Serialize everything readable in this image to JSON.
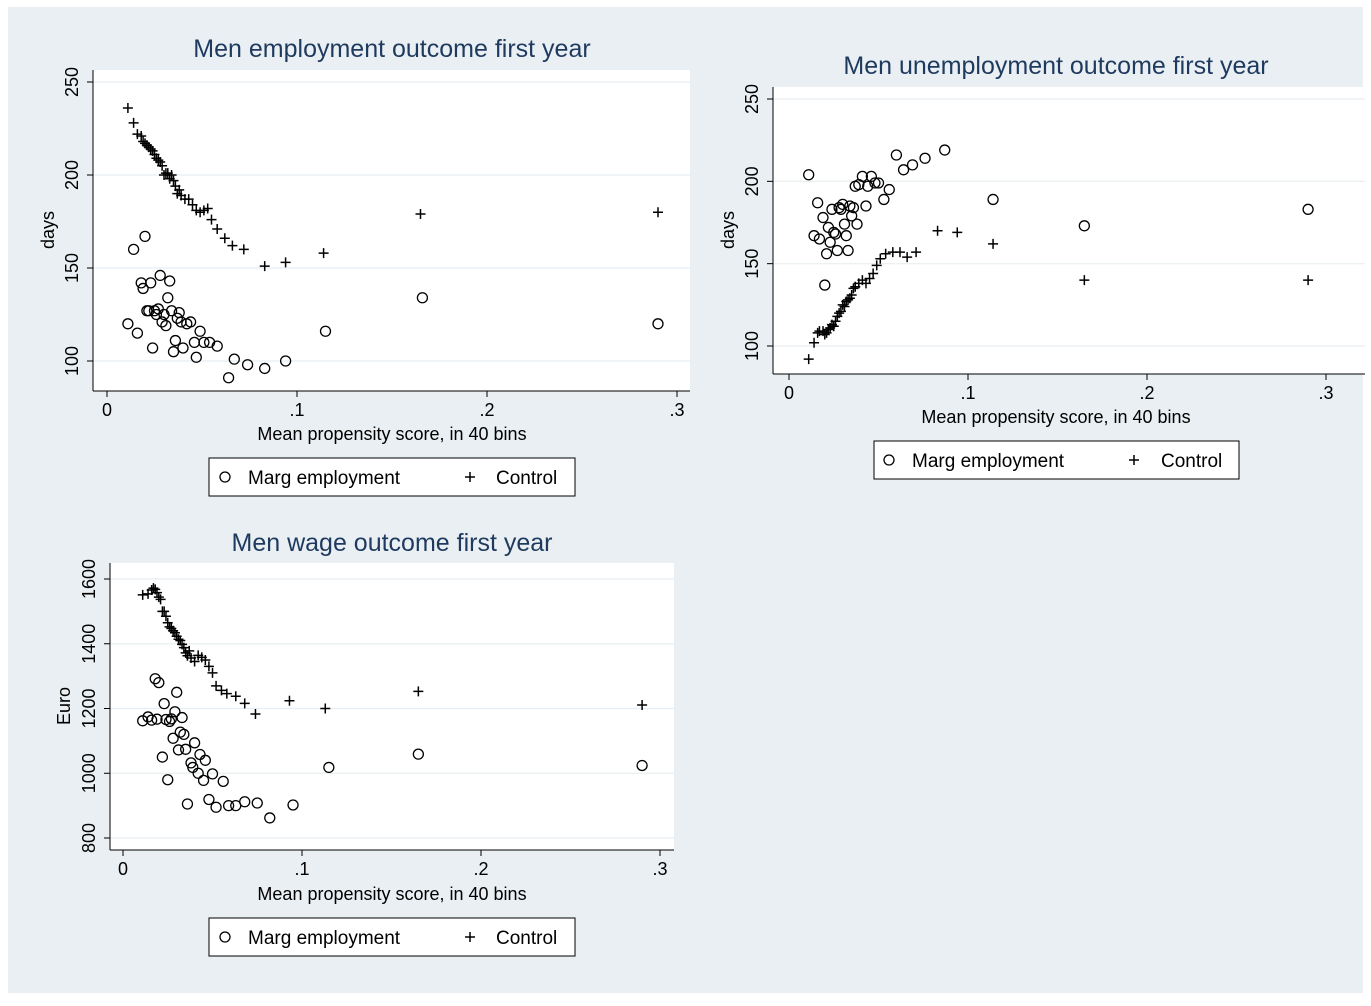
{
  "chart_data": [
    {
      "type": "scatter",
      "title": "Men employment outcome first year",
      "xlabel": "Mean propensity score, in 40 bins",
      "ylabel": "days",
      "xlim": [
        0,
        0.3
      ],
      "ylim": [
        90,
        250
      ],
      "xticks": [
        0,
        0.1,
        0.2,
        0.3
      ],
      "xtick_labels": [
        "0",
        ".1",
        ".2",
        ".3"
      ],
      "yticks": [
        100,
        150,
        200,
        250
      ],
      "ytick_labels": [
        "100",
        "150",
        "200",
        "250"
      ],
      "grid": true,
      "legend_position": "bottom",
      "series": [
        {
          "name": "Marg employment",
          "marker": "circle",
          "points": [
            [
              0.011,
              120
            ],
            [
              0.014,
              160
            ],
            [
              0.016,
              115
            ],
            [
              0.018,
              142
            ],
            [
              0.019,
              139
            ],
            [
              0.02,
              167
            ],
            [
              0.021,
              127
            ],
            [
              0.022,
              127
            ],
            [
              0.023,
              142
            ],
            [
              0.024,
              107
            ],
            [
              0.025,
              127
            ],
            [
              0.026,
              125
            ],
            [
              0.027,
              128
            ],
            [
              0.028,
              146
            ],
            [
              0.029,
              121
            ],
            [
              0.03,
              125
            ],
            [
              0.031,
              119
            ],
            [
              0.032,
              134
            ],
            [
              0.033,
              143
            ],
            [
              0.034,
              127
            ],
            [
              0.035,
              105
            ],
            [
              0.036,
              111
            ],
            [
              0.037,
              123
            ],
            [
              0.038,
              126
            ],
            [
              0.039,
              121
            ],
            [
              0.04,
              107
            ],
            [
              0.042,
              120
            ],
            [
              0.044,
              121
            ],
            [
              0.046,
              110
            ],
            [
              0.047,
              102
            ],
            [
              0.049,
              116
            ],
            [
              0.051,
              110
            ],
            [
              0.054,
              110
            ],
            [
              0.058,
              108
            ],
            [
              0.064,
              91
            ],
            [
              0.067,
              101
            ],
            [
              0.074,
              98
            ],
            [
              0.083,
              96
            ],
            [
              0.094,
              100
            ],
            [
              0.115,
              116
            ],
            [
              0.166,
              134
            ],
            [
              0.29,
              120
            ]
          ]
        },
        {
          "name": "Control",
          "marker": "plus",
          "points": [
            [
              0.011,
              236
            ],
            [
              0.014,
              228
            ],
            [
              0.016,
              222
            ],
            [
              0.018,
              221
            ],
            [
              0.019,
              218
            ],
            [
              0.02,
              217
            ],
            [
              0.021,
              216
            ],
            [
              0.022,
              215
            ],
            [
              0.023,
              214
            ],
            [
              0.024,
              213
            ],
            [
              0.025,
              211
            ],
            [
              0.026,
              209
            ],
            [
              0.027,
              208
            ],
            [
              0.028,
              207
            ],
            [
              0.029,
              205
            ],
            [
              0.03,
              200
            ],
            [
              0.031,
              201
            ],
            [
              0.032,
              201
            ],
            [
              0.033,
              198
            ],
            [
              0.034,
              200
            ],
            [
              0.035,
              197
            ],
            [
              0.036,
              194
            ],
            [
              0.037,
              190
            ],
            [
              0.038,
              192
            ],
            [
              0.039,
              189
            ],
            [
              0.041,
              187
            ],
            [
              0.043,
              187
            ],
            [
              0.045,
              184
            ],
            [
              0.047,
              181
            ],
            [
              0.049,
              180
            ],
            [
              0.051,
              181
            ],
            [
              0.053,
              182
            ],
            [
              0.055,
              176
            ],
            [
              0.058,
              171
            ],
            [
              0.062,
              166
            ],
            [
              0.066,
              162
            ],
            [
              0.072,
              160
            ],
            [
              0.083,
              151
            ],
            [
              0.094,
              153
            ],
            [
              0.114,
              158
            ],
            [
              0.165,
              179
            ],
            [
              0.29,
              180
            ]
          ]
        }
      ]
    },
    {
      "type": "scatter",
      "title": "Men unemployment outcome first year",
      "xlabel": "Mean propensity score, in 40 bins",
      "ylabel": "days",
      "xlim": [
        0,
        0.3
      ],
      "ylim": [
        90,
        255
      ],
      "xticks": [
        0,
        0.1,
        0.2,
        0.3
      ],
      "xtick_labels": [
        "0",
        ".1",
        ".2",
        ".3"
      ],
      "yticks": [
        100,
        150,
        200,
        250
      ],
      "ytick_labels": [
        "100",
        "150",
        "200",
        "250"
      ],
      "grid": true,
      "legend_position": "bottom",
      "series": [
        {
          "name": "Marg employment",
          "marker": "circle",
          "points": [
            [
              0.011,
              204
            ],
            [
              0.014,
              167
            ],
            [
              0.016,
              187
            ],
            [
              0.017,
              165
            ],
            [
              0.019,
              178
            ],
            [
              0.02,
              137
            ],
            [
              0.021,
              156
            ],
            [
              0.022,
              172
            ],
            [
              0.023,
              163
            ],
            [
              0.024,
              183
            ],
            [
              0.025,
              169
            ],
            [
              0.026,
              168
            ],
            [
              0.027,
              158
            ],
            [
              0.028,
              184
            ],
            [
              0.029,
              183
            ],
            [
              0.03,
              186
            ],
            [
              0.031,
              174
            ],
            [
              0.032,
              167
            ],
            [
              0.033,
              158
            ],
            [
              0.034,
              185
            ],
            [
              0.035,
              179
            ],
            [
              0.036,
              184
            ],
            [
              0.037,
              197
            ],
            [
              0.038,
              174
            ],
            [
              0.039,
              198
            ],
            [
              0.041,
              203
            ],
            [
              0.043,
              185
            ],
            [
              0.044,
              197
            ],
            [
              0.046,
              203
            ],
            [
              0.048,
              199
            ],
            [
              0.05,
              199
            ],
            [
              0.053,
              189
            ],
            [
              0.056,
              195
            ],
            [
              0.06,
              216
            ],
            [
              0.064,
              207
            ],
            [
              0.069,
              210
            ],
            [
              0.076,
              214
            ],
            [
              0.087,
              219
            ],
            [
              0.114,
              189
            ],
            [
              0.165,
              173
            ],
            [
              0.29,
              183
            ]
          ]
        },
        {
          "name": "Control",
          "marker": "plus",
          "points": [
            [
              0.011,
              92
            ],
            [
              0.014,
              102
            ],
            [
              0.016,
              108
            ],
            [
              0.017,
              109
            ],
            [
              0.019,
              109
            ],
            [
              0.02,
              107
            ],
            [
              0.021,
              108
            ],
            [
              0.022,
              110
            ],
            [
              0.023,
              111
            ],
            [
              0.024,
              113
            ],
            [
              0.025,
              112
            ],
            [
              0.026,
              115
            ],
            [
              0.027,
              118
            ],
            [
              0.028,
              120
            ],
            [
              0.029,
              121
            ],
            [
              0.03,
              125
            ],
            [
              0.031,
              124
            ],
            [
              0.032,
              127
            ],
            [
              0.033,
              128
            ],
            [
              0.034,
              129
            ],
            [
              0.035,
              131
            ],
            [
              0.036,
              135
            ],
            [
              0.037,
              136
            ],
            [
              0.039,
              138
            ],
            [
              0.041,
              140
            ],
            [
              0.043,
              138
            ],
            [
              0.045,
              141
            ],
            [
              0.047,
              144
            ],
            [
              0.049,
              149
            ],
            [
              0.051,
              153
            ],
            [
              0.054,
              156
            ],
            [
              0.058,
              157
            ],
            [
              0.062,
              157
            ],
            [
              0.066,
              154
            ],
            [
              0.071,
              157
            ],
            [
              0.083,
              170
            ],
            [
              0.094,
              169
            ],
            [
              0.114,
              162
            ],
            [
              0.165,
              140
            ],
            [
              0.29,
              140
            ]
          ]
        }
      ]
    },
    {
      "type": "scatter",
      "title": "Men wage outcome first year",
      "xlabel": "Mean propensity score, in 40 bins",
      "ylabel": "Euro",
      "xlim": [
        0,
        0.3
      ],
      "ylim": [
        800,
        1650
      ],
      "xticks": [
        0,
        0.1,
        0.2,
        0.3
      ],
      "xtick_labels": [
        "0",
        ".1",
        ".2",
        ".3"
      ],
      "yticks": [
        800,
        1000,
        1200,
        1400,
        1600
      ],
      "ytick_labels": [
        "800",
        "1000",
        "1200",
        "1400",
        "1600"
      ],
      "grid": true,
      "legend_position": "bottom",
      "series": [
        {
          "name": "Marg employment",
          "marker": "circle",
          "points": [
            [
              0.011,
              1162
            ],
            [
              0.014,
              1174
            ],
            [
              0.016,
              1164
            ],
            [
              0.018,
              1292
            ],
            [
              0.019,
              1167
            ],
            [
              0.02,
              1280
            ],
            [
              0.022,
              1050
            ],
            [
              0.023,
              1215
            ],
            [
              0.024,
              1166
            ],
            [
              0.025,
              980
            ],
            [
              0.026,
              1160
            ],
            [
              0.027,
              1168
            ],
            [
              0.028,
              1108
            ],
            [
              0.029,
              1190
            ],
            [
              0.03,
              1250
            ],
            [
              0.031,
              1072
            ],
            [
              0.032,
              1127
            ],
            [
              0.033,
              1172
            ],
            [
              0.034,
              1120
            ],
            [
              0.035,
              1074
            ],
            [
              0.036,
              905
            ],
            [
              0.038,
              1032
            ],
            [
              0.039,
              1018
            ],
            [
              0.04,
              1094
            ],
            [
              0.042,
              1000
            ],
            [
              0.043,
              1058
            ],
            [
              0.045,
              978
            ],
            [
              0.046,
              1040
            ],
            [
              0.048,
              919
            ],
            [
              0.05,
              998
            ],
            [
              0.052,
              895
            ],
            [
              0.056,
              975
            ],
            [
              0.059,
              900
            ],
            [
              0.063,
              900
            ],
            [
              0.068,
              912
            ],
            [
              0.075,
              908
            ],
            [
              0.082,
              862
            ],
            [
              0.095,
              902
            ],
            [
              0.115,
              1018
            ],
            [
              0.165,
              1059
            ],
            [
              0.29,
              1024
            ]
          ]
        },
        {
          "name": "Control",
          "marker": "plus",
          "points": [
            [
              0.011,
              1551
            ],
            [
              0.014,
              1554
            ],
            [
              0.016,
              1566
            ],
            [
              0.017,
              1572
            ],
            [
              0.018,
              1568
            ],
            [
              0.019,
              1558
            ],
            [
              0.02,
              1544
            ],
            [
              0.021,
              1537
            ],
            [
              0.022,
              1500
            ],
            [
              0.023,
              1500
            ],
            [
              0.024,
              1485
            ],
            [
              0.025,
              1465
            ],
            [
              0.026,
              1452
            ],
            [
              0.027,
              1447
            ],
            [
              0.028,
              1440
            ],
            [
              0.029,
              1434
            ],
            [
              0.03,
              1423
            ],
            [
              0.031,
              1414
            ],
            [
              0.032,
              1410
            ],
            [
              0.033,
              1398
            ],
            [
              0.034,
              1388
            ],
            [
              0.035,
              1372
            ],
            [
              0.036,
              1363
            ],
            [
              0.037,
              1378
            ],
            [
              0.038,
              1356
            ],
            [
              0.04,
              1345
            ],
            [
              0.042,
              1364
            ],
            [
              0.044,
              1358
            ],
            [
              0.046,
              1350
            ],
            [
              0.048,
              1330
            ],
            [
              0.05,
              1310
            ],
            [
              0.052,
              1270
            ],
            [
              0.055,
              1256
            ],
            [
              0.058,
              1246
            ],
            [
              0.063,
              1238
            ],
            [
              0.068,
              1216
            ],
            [
              0.074,
              1183
            ],
            [
              0.093,
              1224
            ],
            [
              0.113,
              1200
            ],
            [
              0.165,
              1253
            ],
            [
              0.29,
              1211
            ]
          ]
        }
      ]
    }
  ],
  "colors": {
    "background": "#e9eff2",
    "plot_area": "#ffffff",
    "grid": "#e8eef1",
    "title": "#1f3a5f",
    "marker": "#000000",
    "text": "#000000"
  }
}
